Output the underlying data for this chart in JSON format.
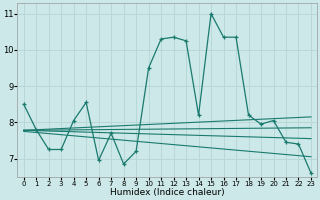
{
  "xlabel": "Humidex (Indice chaleur)",
  "background_color": "#cce8e8",
  "grid_color": "#b8d8d8",
  "line_color": "#1a7a6e",
  "xlim": [
    -0.5,
    23.5
  ],
  "ylim": [
    6.5,
    11.3
  ],
  "yticks": [
    7,
    8,
    9,
    10,
    11
  ],
  "xticks": [
    0,
    1,
    2,
    3,
    4,
    5,
    6,
    7,
    8,
    9,
    10,
    11,
    12,
    13,
    14,
    15,
    16,
    17,
    18,
    19,
    20,
    21,
    22,
    23
  ],
  "main_line": {
    "x": [
      0,
      1,
      2,
      3,
      4,
      5,
      6,
      7,
      8,
      9,
      10,
      11,
      12,
      13,
      14,
      15,
      16,
      17,
      18,
      19,
      20,
      21,
      22,
      23
    ],
    "y": [
      8.5,
      7.8,
      7.25,
      7.25,
      8.05,
      8.55,
      6.95,
      7.7,
      6.85,
      7.2,
      9.5,
      10.3,
      10.35,
      10.25,
      8.2,
      11.0,
      10.35,
      10.35,
      8.2,
      7.95,
      8.05,
      7.45,
      7.4,
      6.6
    ]
  },
  "trend_lines": [
    {
      "x": [
        0,
        23
      ],
      "y": [
        7.78,
        8.15
      ]
    },
    {
      "x": [
        0,
        23
      ],
      "y": [
        7.78,
        7.85
      ]
    },
    {
      "x": [
        0,
        23
      ],
      "y": [
        7.78,
        7.55
      ]
    },
    {
      "x": [
        0,
        23
      ],
      "y": [
        7.75,
        7.05
      ]
    }
  ]
}
